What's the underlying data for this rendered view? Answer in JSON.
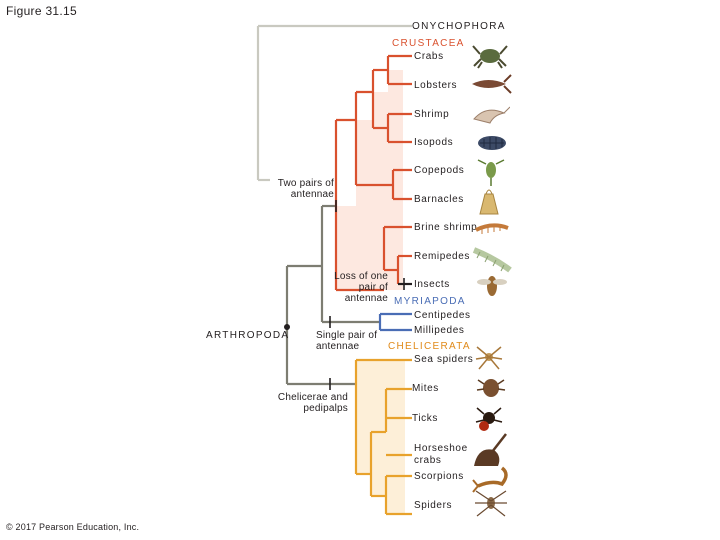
{
  "figure_title": "Figure 31.15",
  "copyright": "© 2017 Pearson Education, Inc.",
  "colors": {
    "onychophora": "#c9c9c0",
    "arthropod_stem": "#7d7d72",
    "crustacea": "#d9512e",
    "crustacea_fill": "#fde8e0",
    "myriapoda": "#4a6db5",
    "chelicerata": "#e8a22c",
    "chelicerata_fill": "#fdefd8",
    "crustacea_label": "#d9512e",
    "myriapoda_label": "#4a6db5",
    "chelicerata_label": "#e08a1a"
  },
  "groups": {
    "onychophora": "ONYCHOPHORA",
    "crustacea": "CRUSTACEA",
    "myriapoda": "MYRIAPODA",
    "chelicerata": "CHELICERATA",
    "arthropoda": "ARTHROPODA"
  },
  "taxa": [
    {
      "name": "Crabs",
      "icon": "crab-icon"
    },
    {
      "name": "Lobsters",
      "icon": "lobster-icon"
    },
    {
      "name": "Shrimp",
      "icon": "shrimp-icon"
    },
    {
      "name": "Isopods",
      "icon": "isopod-icon"
    },
    {
      "name": "Copepods",
      "icon": "copepod-icon"
    },
    {
      "name": "Barnacles",
      "icon": "barnacle-icon"
    },
    {
      "name": "Brine shrimp",
      "icon": "brine-shrimp-icon"
    },
    {
      "name": "Remipedes",
      "icon": "remipede-icon"
    },
    {
      "name": "Insects",
      "icon": "insect-icon"
    },
    {
      "name": "Centipedes",
      "icon": "centipede-icon"
    },
    {
      "name": "Millipedes",
      "icon": "millipede-icon"
    },
    {
      "name": "Sea spiders",
      "icon": "sea-spider-icon"
    },
    {
      "name": "Mites",
      "icon": "mite-icon"
    },
    {
      "name": "Ticks",
      "icon": "tick-icon"
    },
    {
      "name": "Horseshoe crabs",
      "icon": "horseshoe-crab-icon"
    },
    {
      "name": "Scorpions",
      "icon": "scorpion-icon"
    },
    {
      "name": "Spiders",
      "icon": "spider-icon"
    }
  ],
  "traits": {
    "two_pairs_antennae": "Two pairs of antennae",
    "loss_one_pair": "Loss of one pair of antennae",
    "single_pair": "Single pair of antennae",
    "chelicerae": "Chelicerae and pedipalps"
  }
}
